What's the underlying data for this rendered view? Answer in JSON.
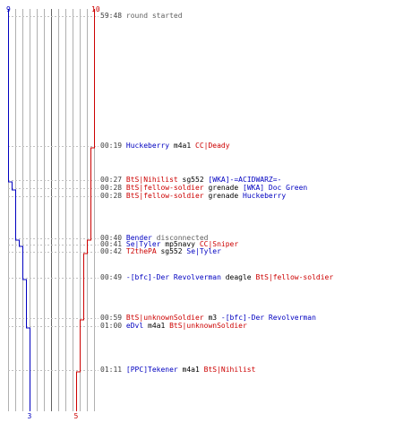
{
  "colors": {
    "blue": "#0000c0",
    "red": "#cc0000",
    "grid": "#b0b0b0",
    "grid_dark": "#606060",
    "tick": "#c0c0c0"
  },
  "team_blue": {
    "start_count": "9",
    "end_count": "3"
  },
  "team_red": {
    "start_count": "10",
    "end_count": "5"
  },
  "header": {
    "time": "59:48",
    "text": "round started"
  },
  "events": [
    {
      "time": "00:19",
      "actor": "Huckeberry",
      "actor_team": "blue",
      "weapon": "m4a1",
      "victim": "CC|Deady",
      "victim_team": "red"
    },
    {
      "time": "00:27",
      "actor": "BtS|Nihilist",
      "actor_team": "red",
      "weapon": "sg552",
      "victim": "[WKA]-=ACIDWARZ=-",
      "victim_team": "blue"
    },
    {
      "time": "00:28",
      "actor": "BtS|fellow-soldier",
      "actor_team": "red",
      "weapon": "grenade",
      "victim": "[WKA] Doc Green",
      "victim_team": "blue"
    },
    {
      "time": "00:28",
      "actor": "BtS|fellow-soldier",
      "actor_team": "red",
      "weapon": "grenade",
      "victim": "Huckeberry",
      "victim_team": "blue"
    },
    {
      "time": "00:40",
      "actor": "Bender",
      "actor_team": "blue",
      "event": "disconnected"
    },
    {
      "time": "00:41",
      "actor": "Se|Tyler",
      "actor_team": "blue",
      "weapon": "mp5navy",
      "victim": "CC|Sniper",
      "victim_team": "red"
    },
    {
      "time": "00:42",
      "actor": "T2thePA",
      "actor_team": "red",
      "weapon": "sg552",
      "victim": "Se|Tyler",
      "victim_team": "blue"
    },
    {
      "time": "00:49",
      "actor": "-[bfc]-Der Revolverman",
      "actor_team": "blue",
      "weapon": "deagle",
      "victim": "BtS|fellow-soldier",
      "victim_team": "red"
    },
    {
      "time": "00:59",
      "actor": "BtS|unknownSoldier",
      "actor_team": "red",
      "weapon": "m3",
      "victim": "-[bfc]-Der Revolverman",
      "victim_team": "blue"
    },
    {
      "time": "01:00",
      "actor": "eDvl",
      "actor_team": "blue",
      "weapon": "m4a1",
      "victim": "BtS|unknownSoldier",
      "victim_team": "red"
    },
    {
      "time": "01:11",
      "actor": "[PPC]Tekener",
      "actor_team": "blue",
      "weapon": "m4a1",
      "victim": "BtS|Nihilist",
      "victim_team": "red"
    }
  ],
  "chart_data": {
    "type": "line",
    "title": "",
    "x_note": "",
    "series": [
      {
        "name": "",
        "color": "#0000c0",
        "steps": [
          9,
          9,
          8,
          7,
          7,
          6,
          5,
          5,
          4,
          4,
          3,
          3
        ]
      },
      {
        "name": "",
        "color": "#cc0000",
        "steps": [
          10,
          9,
          9,
          9,
          9,
          8,
          8,
          7,
          7,
          6,
          6,
          5
        ]
      }
    ],
    "ylim": [
      0,
      10
    ]
  }
}
